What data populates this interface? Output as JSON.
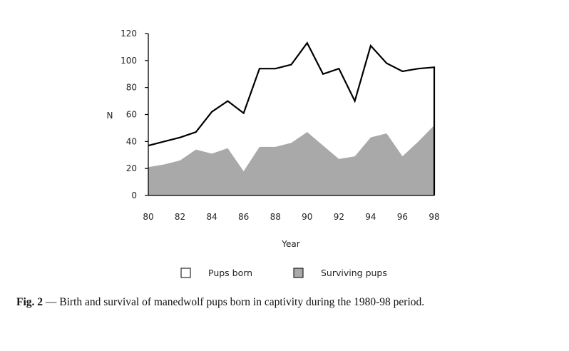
{
  "chart_data": {
    "type": "area",
    "xlabel": "Year",
    "ylabel": "N",
    "xlim": [
      80,
      98
    ],
    "ylim": [
      0,
      120
    ],
    "x_ticks": [
      "80",
      "82",
      "84",
      "86",
      "88",
      "90",
      "92",
      "94",
      "96",
      "98"
    ],
    "y_ticks": [
      "0",
      "20",
      "40",
      "60",
      "80",
      "100",
      "120"
    ],
    "x": [
      80,
      81,
      82,
      83,
      84,
      85,
      86,
      87,
      88,
      89,
      90,
      91,
      92,
      93,
      94,
      95,
      96,
      97,
      98
    ],
    "series": [
      {
        "name": "Pups born",
        "style": "line",
        "color": "#000000",
        "values": [
          37,
          40,
          43,
          47,
          62,
          70,
          61,
          94,
          94,
          97,
          113,
          90,
          94,
          70,
          111,
          98,
          92,
          94,
          95
        ]
      },
      {
        "name": "Surviving pups",
        "style": "filled-area",
        "color": "#a9a9a9",
        "values": [
          21,
          23,
          26,
          34,
          31,
          35,
          18,
          36,
          36,
          39,
          47,
          37,
          27,
          29,
          43,
          46,
          29,
          40,
          52
        ]
      }
    ],
    "legend_position": "bottom"
  },
  "caption": {
    "label": "Fig. 2",
    "text": " — Birth and survival of manedwolf pups born in captivity during the 1980-98 period."
  }
}
